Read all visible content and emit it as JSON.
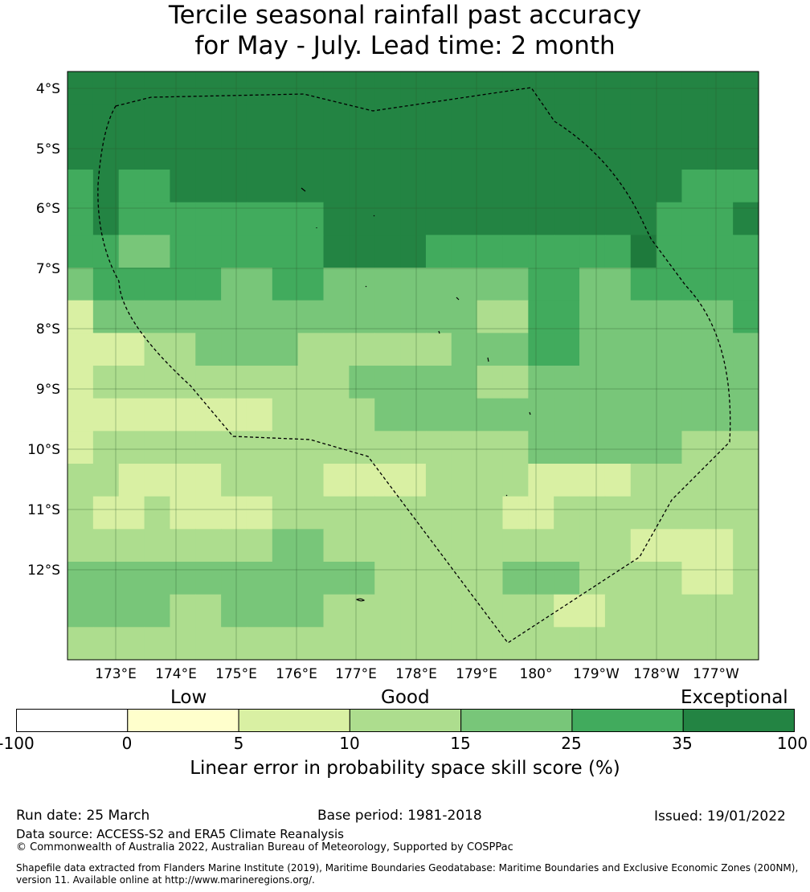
{
  "title": {
    "line1": "Tercile seasonal rainfall past accuracy",
    "line2": "for May - July. Lead time: 2 month"
  },
  "map": {
    "lat_labels": [
      "4°S",
      "5°S",
      "6°S",
      "7°S",
      "8°S",
      "9°S",
      "10°S",
      "11°S",
      "12°S"
    ],
    "lon_labels": [
      "173°E",
      "174°E",
      "175°E",
      "176°E",
      "177°E",
      "178°E",
      "179°E",
      "180°",
      "179°W",
      "178°W",
      "177°W"
    ],
    "grid": [
      [
        6,
        6,
        6,
        6,
        6,
        6,
        6,
        6,
        6,
        6,
        6,
        6,
        6,
        6,
        6,
        6,
        6,
        6,
        6,
        6,
        6,
        6,
        6,
        6,
        6,
        6,
        6
      ],
      [
        6,
        6,
        6,
        6,
        6,
        6,
        6,
        6,
        6,
        6,
        6,
        6,
        6,
        6,
        6,
        6,
        6,
        6,
        6,
        6,
        6,
        6,
        6,
        6,
        6,
        6,
        6
      ],
      [
        6,
        6,
        6,
        6,
        6,
        6,
        6,
        6,
        6,
        6,
        6,
        6,
        6,
        6,
        6,
        6,
        6,
        6,
        6,
        6,
        6,
        6,
        6,
        6,
        6,
        6,
        6
      ],
      [
        5,
        6,
        5,
        5,
        6,
        6,
        6,
        6,
        6,
        6,
        6,
        6,
        6,
        6,
        6,
        6,
        6,
        6,
        6,
        6,
        6,
        6,
        6,
        6,
        5,
        5,
        5
      ],
      [
        5,
        6,
        5,
        5,
        5,
        5,
        5,
        5,
        5,
        5,
        6,
        6,
        6,
        6,
        6,
        6,
        6,
        6,
        6,
        6,
        6,
        6,
        6,
        5,
        5,
        5,
        6
      ],
      [
        5,
        5,
        4,
        4,
        5,
        5,
        5,
        5,
        5,
        5,
        6,
        6,
        6,
        6,
        5,
        5,
        5,
        5,
        5,
        5,
        5,
        5,
        7,
        5,
        5,
        5,
        5
      ],
      [
        4,
        5,
        5,
        5,
        5,
        5,
        4,
        4,
        5,
        5,
        4,
        4,
        4,
        4,
        4,
        4,
        4,
        4,
        5,
        5,
        4,
        4,
        5,
        5,
        5,
        5,
        5
      ],
      [
        2,
        4,
        4,
        4,
        4,
        4,
        4,
        4,
        4,
        4,
        4,
        4,
        4,
        4,
        4,
        4,
        3,
        3,
        5,
        5,
        4,
        4,
        4,
        4,
        4,
        4,
        5
      ],
      [
        2,
        2,
        2,
        3,
        3,
        4,
        4,
        4,
        4,
        3,
        3,
        3,
        3,
        3,
        3,
        4,
        4,
        4,
        5,
        5,
        4,
        4,
        4,
        4,
        4,
        4,
        4
      ],
      [
        2,
        3,
        3,
        3,
        3,
        3,
        3,
        3,
        3,
        3,
        3,
        4,
        4,
        4,
        4,
        4,
        3,
        3,
        4,
        4,
        4,
        4,
        4,
        4,
        4,
        4,
        4
      ],
      [
        2,
        2,
        2,
        2,
        2,
        2,
        2,
        2,
        3,
        3,
        3,
        3,
        4,
        4,
        4,
        4,
        4,
        4,
        4,
        4,
        4,
        4,
        4,
        4,
        4,
        4,
        4
      ],
      [
        2,
        3,
        3,
        3,
        3,
        3,
        3,
        3,
        3,
        3,
        3,
        3,
        3,
        3,
        3,
        3,
        3,
        3,
        4,
        4,
        4,
        4,
        4,
        4,
        3,
        3,
        3
      ],
      [
        3,
        3,
        2,
        2,
        2,
        2,
        3,
        3,
        3,
        3,
        2,
        2,
        2,
        2,
        3,
        3,
        3,
        3,
        2,
        2,
        2,
        2,
        3,
        3,
        3,
        3,
        3
      ],
      [
        3,
        2,
        2,
        3,
        2,
        2,
        2,
        2,
        3,
        3,
        3,
        3,
        3,
        3,
        3,
        3,
        3,
        2,
        2,
        3,
        3,
        3,
        3,
        3,
        3,
        3,
        3
      ],
      [
        3,
        3,
        3,
        3,
        3,
        3,
        3,
        3,
        4,
        4,
        3,
        3,
        3,
        3,
        3,
        3,
        3,
        3,
        3,
        3,
        3,
        3,
        2,
        2,
        2,
        2,
        3
      ],
      [
        4,
        4,
        4,
        4,
        4,
        4,
        4,
        4,
        4,
        4,
        4,
        4,
        3,
        3,
        3,
        3,
        3,
        4,
        4,
        4,
        3,
        3,
        3,
        3,
        2,
        2,
        3
      ],
      [
        4,
        4,
        4,
        4,
        3,
        3,
        4,
        4,
        4,
        4,
        3,
        3,
        3,
        3,
        3,
        3,
        3,
        3,
        3,
        2,
        2,
        3,
        3,
        3,
        3,
        3,
        3
      ],
      [
        3,
        3,
        3,
        3,
        3,
        3,
        3,
        3,
        3,
        3,
        3,
        3,
        3,
        3,
        3,
        3,
        3,
        3,
        3,
        3,
        3,
        3,
        3,
        3,
        3,
        3,
        3
      ]
    ]
  },
  "colorbar": {
    "categories": [
      {
        "name": "Low"
      },
      {
        "name": "Good"
      },
      {
        "name": "Exceptional"
      }
    ],
    "bins": [
      {
        "from": -100,
        "to": 0,
        "color": "#ffffff"
      },
      {
        "from": 0,
        "to": 5,
        "color": "#ffffcc"
      },
      {
        "from": 5,
        "to": 10,
        "color": "#d9f0a3"
      },
      {
        "from": 10,
        "to": 15,
        "color": "#addd8e"
      },
      {
        "from": 15,
        "to": 25,
        "color": "#78c679"
      },
      {
        "from": 25,
        "to": 35,
        "color": "#41ab5d"
      },
      {
        "from": 35,
        "to": 100,
        "color": "#238443"
      }
    ],
    "extra_color": "#1e7a3c",
    "ticks": [
      "-100",
      "0",
      "5",
      "10",
      "15",
      "25",
      "35",
      "100"
    ],
    "title": "Linear error in probability space skill score (%)"
  },
  "footer": {
    "run_date": "Run date: 25 March",
    "base_period": "Base period: 1981-2018",
    "issued": "Issued: 19/01/2022",
    "data_source": "Data source: ACCESS-S2 and ERA5 Climate Reanalysis",
    "copyright": "© Commonwealth of Australia 2022, Australian Bureau of Meteorology, Supported by COSPPac",
    "shapefile": "Shapefile data extracted from Flanders Marine Institute (2019), Maritime Boundaries Geodatabase: Maritime Boundaries and Exclusive Economic Zones (200NM), version 11. Available online at http://www.marineregions.org/."
  }
}
